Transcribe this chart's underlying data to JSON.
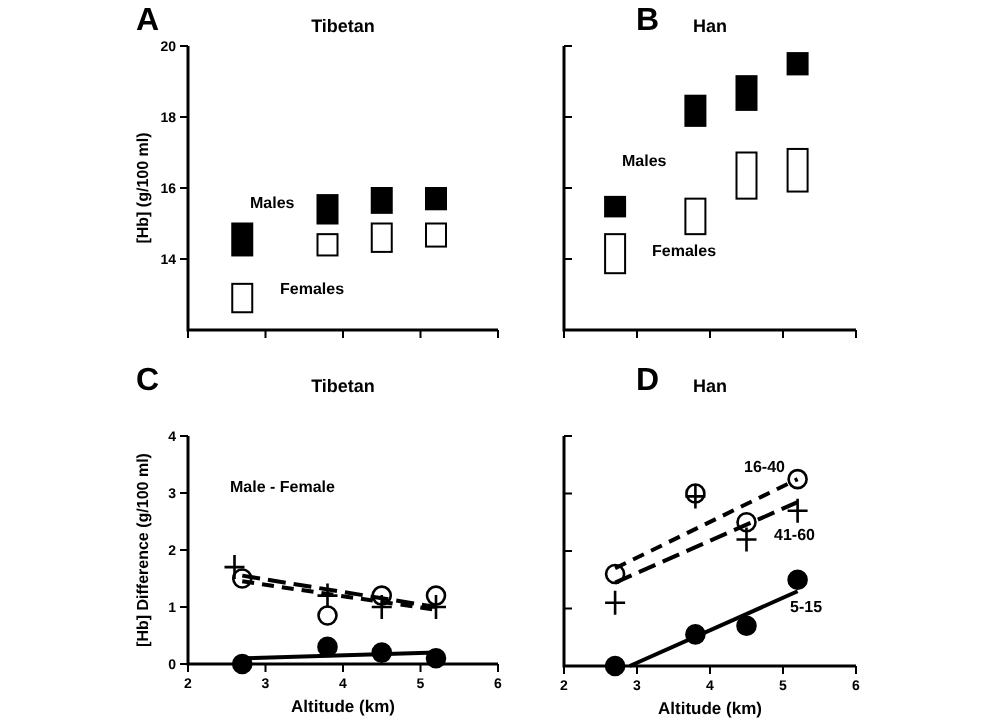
{
  "chart_data": [
    {
      "type": "bar",
      "title": "Tibetan",
      "ylabel": "[Hb] (g/100 ml)",
      "annotations": [
        "A"
      ],
      "x": [
        2.7,
        3.8,
        4.5,
        5.2
      ],
      "xlim": [
        2,
        6
      ],
      "xticks": [
        2,
        3,
        4,
        5,
        6
      ],
      "ylim": [
        12,
        20
      ],
      "yticks": [
        14,
        16,
        18,
        20
      ],
      "tick_labels": "y",
      "series": [
        {
          "name": "Males",
          "color": "#000000",
          "base": [
            14.1,
            15.0,
            15.3,
            15.4
          ],
          "values": [
            0.9,
            0.8,
            0.7,
            0.6
          ]
        },
        {
          "name": "Females",
          "color": "#ffffff",
          "base": [
            12.5,
            14.1,
            14.2,
            14.35
          ],
          "values": [
            0.8,
            0.6,
            0.8,
            0.65
          ]
        }
      ]
    },
    {
      "type": "bar",
      "title": "Han",
      "annotations": [
        "B"
      ],
      "x": [
        2.7,
        3.8,
        4.5,
        5.2
      ],
      "xlim": [
        2,
        6
      ],
      "xticks": [
        2,
        3,
        4,
        5,
        6
      ],
      "ylim": [
        12,
        20
      ],
      "yticks": [
        14,
        16,
        18,
        20
      ],
      "tick_labels": false,
      "series": [
        {
          "name": "Males",
          "color": "#000000",
          "base": [
            15.2,
            17.75,
            18.2,
            19.2
          ],
          "values": [
            0.55,
            0.85,
            0.95,
            0.6
          ]
        },
        {
          "name": "Females",
          "color": "#ffffff",
          "base": [
            13.6,
            14.7,
            15.7,
            15.9
          ],
          "values": [
            1.1,
            1.0,
            1.3,
            1.2
          ]
        }
      ]
    },
    {
      "type": "scatter",
      "title": "Tibetan",
      "xlabel": "Altitude (km)",
      "ylabel": "[Hb] Difference (g/100 ml)",
      "annotations": [
        "C",
        "Male - Female"
      ],
      "xlim": [
        2,
        6
      ],
      "xticks": [
        2,
        3,
        4,
        5,
        6
      ],
      "ylim": [
        0,
        4
      ],
      "yticks": [
        0,
        1,
        2,
        3,
        4
      ],
      "series": [
        {
          "color": "#000000",
          "marker": "circle",
          "x": [
            2.7,
            3.8,
            4.5,
            5.2
          ],
          "values": [
            0,
            0.3,
            0.2,
            0.1
          ]
        },
        {
          "color": "#ffffff",
          "marker": "circle",
          "x": [
            2.7,
            3.8,
            4.5,
            5.2
          ],
          "values": [
            1.5,
            0.85,
            1.2,
            1.2
          ]
        },
        {
          "color": "#000000",
          "marker": "cross",
          "x": [
            2.6,
            3.8,
            4.5,
            5.2
          ],
          "values": [
            1.7,
            1.2,
            1.0,
            1.0
          ]
        },
        {
          "type": "line",
          "color": "#000000",
          "line_style": "solid",
          "x": [
            2.7,
            5.2
          ],
          "values": [
            0.1,
            0.2
          ]
        },
        {
          "type": "line",
          "color": "#000000",
          "line_style": "dashed",
          "x": [
            2.7,
            5.2
          ],
          "values": [
            1.55,
            1.0
          ]
        },
        {
          "type": "line",
          "color": "#000000",
          "line_style": "dashed",
          "x": [
            2.7,
            5.2
          ],
          "values": [
            1.45,
            0.95
          ]
        }
      ]
    },
    {
      "type": "scatter",
      "title": "Han",
      "xlabel": "Altitude (km)",
      "annotations": [
        "D"
      ],
      "xlim": [
        2,
        6
      ],
      "xticks": [
        2,
        3,
        4,
        5,
        6
      ],
      "ylim": [
        0,
        4
      ],
      "yticks": [
        0,
        1,
        2,
        3,
        4
      ],
      "tick_labels": "x",
      "series": [
        {
          "name": "16-40",
          "color": "#ffffff",
          "marker": "circle",
          "x": [
            2.7,
            3.8,
            4.5,
            5.2
          ],
          "values": [
            1.6,
            3.0,
            2.5,
            3.25
          ]
        },
        {
          "name": "41-60",
          "color": "#000000",
          "marker": "cross",
          "x": [
            2.7,
            3.8,
            4.5,
            5.2
          ],
          "values": [
            1.1,
            2.95,
            2.2,
            2.7
          ]
        },
        {
          "name": "5-15",
          "color": "#000000",
          "marker": "circle",
          "x": [
            2.7,
            3.8,
            4.5,
            5.2
          ],
          "values": [
            0,
            0.55,
            0.7,
            1.5
          ]
        },
        {
          "type": "line",
          "color": "#000000",
          "line_style": "dashed",
          "x": [
            2.7,
            5.2
          ],
          "values": [
            1.7,
            3.25
          ]
        },
        {
          "type": "line",
          "color": "#000000",
          "line_style": "dashed",
          "x": [
            2.7,
            5.2
          ],
          "values": [
            1.45,
            2.85
          ]
        },
        {
          "type": "line",
          "color": "#000000",
          "line_style": "solid",
          "x": [
            2.9,
            5.2
          ],
          "values": [
            0,
            1.3
          ]
        }
      ]
    }
  ]
}
